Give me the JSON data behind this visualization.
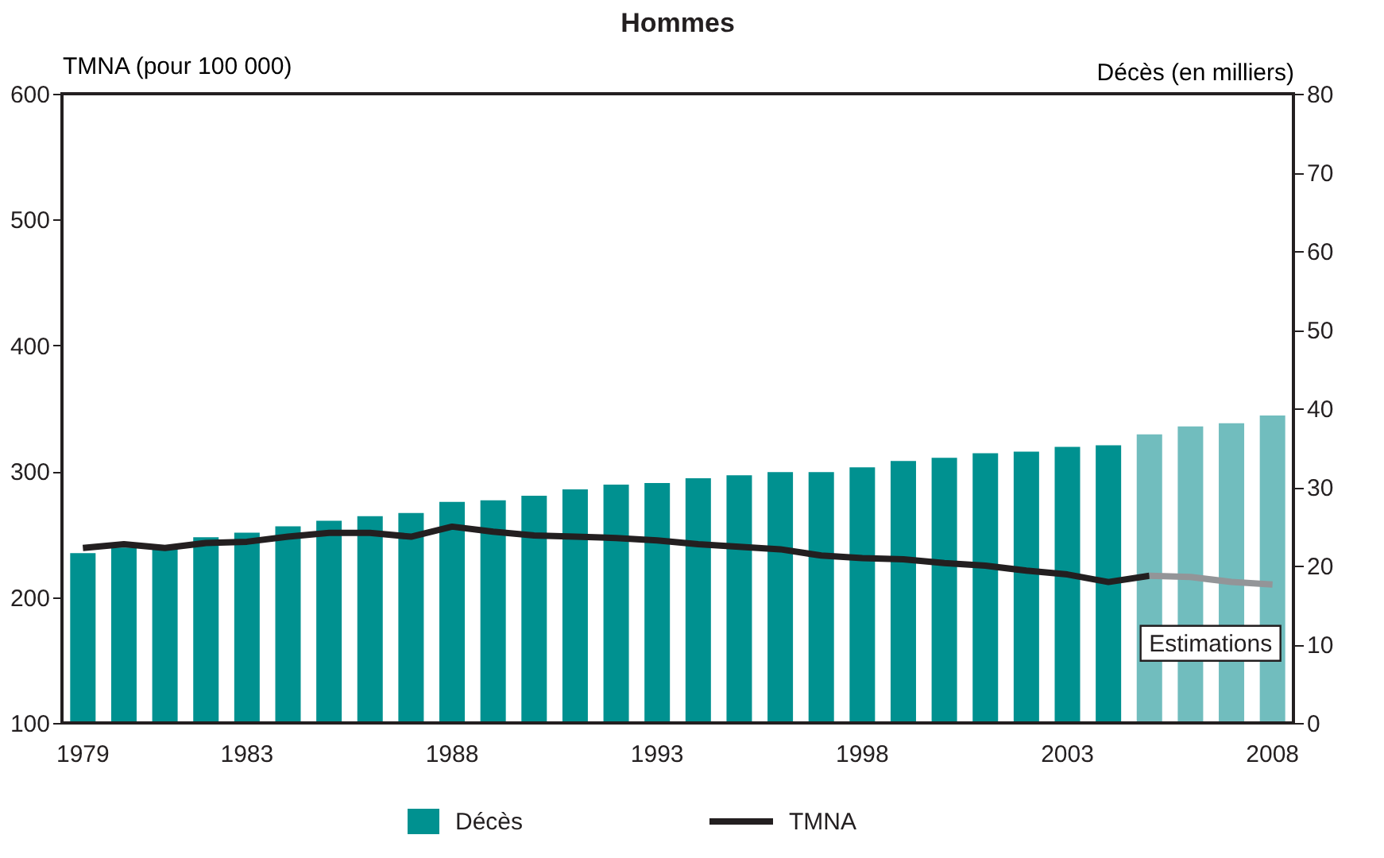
{
  "chart_data": {
    "type": "bar",
    "title": "Hommes",
    "ylabel": "TMNA (pour 100 000)",
    "y2label": "Décès (en milliers)",
    "categories": [
      "1979",
      null,
      null,
      null,
      "1983",
      null,
      null,
      null,
      null,
      "1988",
      null,
      null,
      null,
      null,
      "1993",
      null,
      null,
      null,
      null,
      "1998",
      null,
      null,
      null,
      null,
      "2003",
      null,
      null,
      null,
      null,
      "2008"
    ],
    "series": [
      {
        "name": "Décès",
        "axis": "y2",
        "color": "#009190",
        "colors": [
          "#009190",
          "#009190",
          "#009190",
          "#009190",
          "#009190",
          "#009190",
          "#009190",
          "#009190",
          "#009190",
          "#009190",
          "#009190",
          "#009190",
          "#009190",
          "#009190",
          "#009190",
          "#009190",
          "#009190",
          "#009190",
          "#009190",
          "#009190",
          "#009190",
          "#009190",
          "#009190",
          "#009190",
          "#009190",
          "#009190",
          "#71bdbe",
          "#71bdbe",
          "#71bdbe",
          "#71bdbe"
        ],
        "values": [
          21.6,
          22.3,
          22.6,
          23.6,
          24.2,
          25.0,
          25.7,
          26.3,
          26.7,
          28.1,
          28.3,
          28.9,
          29.7,
          30.3,
          30.5,
          31.1,
          31.5,
          31.9,
          31.9,
          32.5,
          33.3,
          33.7,
          34.3,
          34.5,
          35.1,
          35.3,
          36.7,
          37.7,
          38.1,
          39.1
        ]
      },
      {
        "name": "TMNA",
        "type": "line",
        "axis": "y",
        "color": "#231f20",
        "values": [
          239,
          242,
          239,
          243,
          244,
          248,
          251,
          251,
          248,
          256,
          252,
          249,
          248,
          247,
          245,
          242,
          240,
          238,
          233,
          231,
          230,
          227,
          225,
          221,
          218,
          212,
          217,
          null,
          null,
          null
        ]
      },
      {
        "type": "line",
        "axis": "y",
        "color": "#939598",
        "values": [
          null,
          null,
          null,
          null,
          null,
          null,
          null,
          null,
          null,
          null,
          null,
          null,
          null,
          null,
          null,
          null,
          null,
          null,
          null,
          null,
          null,
          null,
          null,
          null,
          null,
          null,
          217,
          216,
          212,
          210
        ]
      }
    ],
    "ylim": [
      100,
      600
    ],
    "yticks": [
      100,
      200,
      300,
      400,
      500,
      600
    ],
    "y2lim": [
      0,
      80
    ],
    "y2ticks": [
      0,
      10,
      20,
      30,
      40,
      50,
      60,
      70,
      80
    ],
    "annotations": [
      {
        "text": "Estimations",
        "x": "2008",
        "y": 210
      }
    ],
    "legend": "bottom",
    "grid": false,
    "line_style": "solid",
    "marker": "none"
  }
}
